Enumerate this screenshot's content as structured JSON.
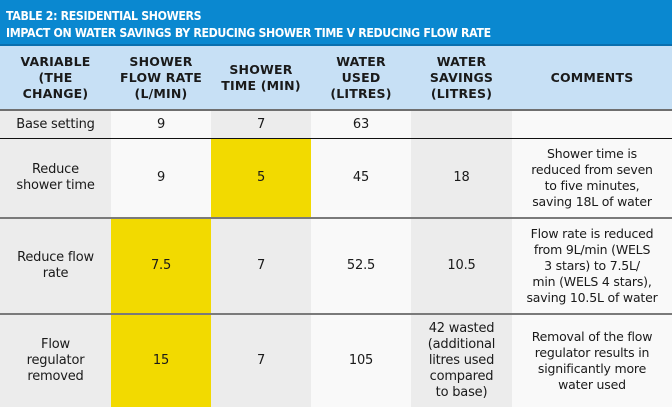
{
  "title": {
    "line1": "TABLE 2: RESIDENTIAL SHOWERS",
    "line2": "IMPACT ON WATER SAVINGS BY REDUCING SHOWER TIME V REDUCING FLOW RATE"
  },
  "colors": {
    "title_bar": "#0a88d0",
    "header_bg": "#c7e0f5",
    "highlight": "#f2da00",
    "shaded_column": "#ececec",
    "light_column": "#f9f9f9"
  },
  "table": {
    "headers": [
      "VARIABLE\n(THE\nCHANGE)",
      "SHOWER\nFLOW RATE\n(L/MIN)",
      "SHOWER\nTIME (MIN)",
      "WATER\nUSED\n(LITRES)",
      "WATER\nSAVINGS\n(LITRES)",
      "COMMENTS"
    ],
    "rows": [
      {
        "variable": "Base setting",
        "flow_rate": "9",
        "time": "7",
        "water_used": "63",
        "savings": "",
        "comments": "",
        "highlight": []
      },
      {
        "variable": "Reduce\nshower time",
        "flow_rate": "9",
        "time": "5",
        "water_used": "45",
        "savings": "18",
        "comments": "Shower time is\nreduced from seven\nto five minutes,\nsaving 18L of water",
        "highlight": [
          "time"
        ]
      },
      {
        "variable": "Reduce flow\nrate",
        "flow_rate": "7.5",
        "time": "7",
        "water_used": "52.5",
        "savings": "10.5",
        "comments": "Flow rate is reduced\nfrom 9L/min (WELS\n3 stars) to 7.5L/\nmin (WELS 4 stars),\nsaving 10.5L of water",
        "highlight": [
          "flow_rate"
        ]
      },
      {
        "variable": "Flow\nregulator\nremoved",
        "flow_rate": "15",
        "time": "7",
        "water_used": "105",
        "savings": "42 wasted\n(additional\nlitres used\ncompared\nto base)",
        "comments": "Removal of the flow\nregulator results in\nsignificantly more\nwater used",
        "highlight": [
          "flow_rate"
        ]
      }
    ]
  }
}
